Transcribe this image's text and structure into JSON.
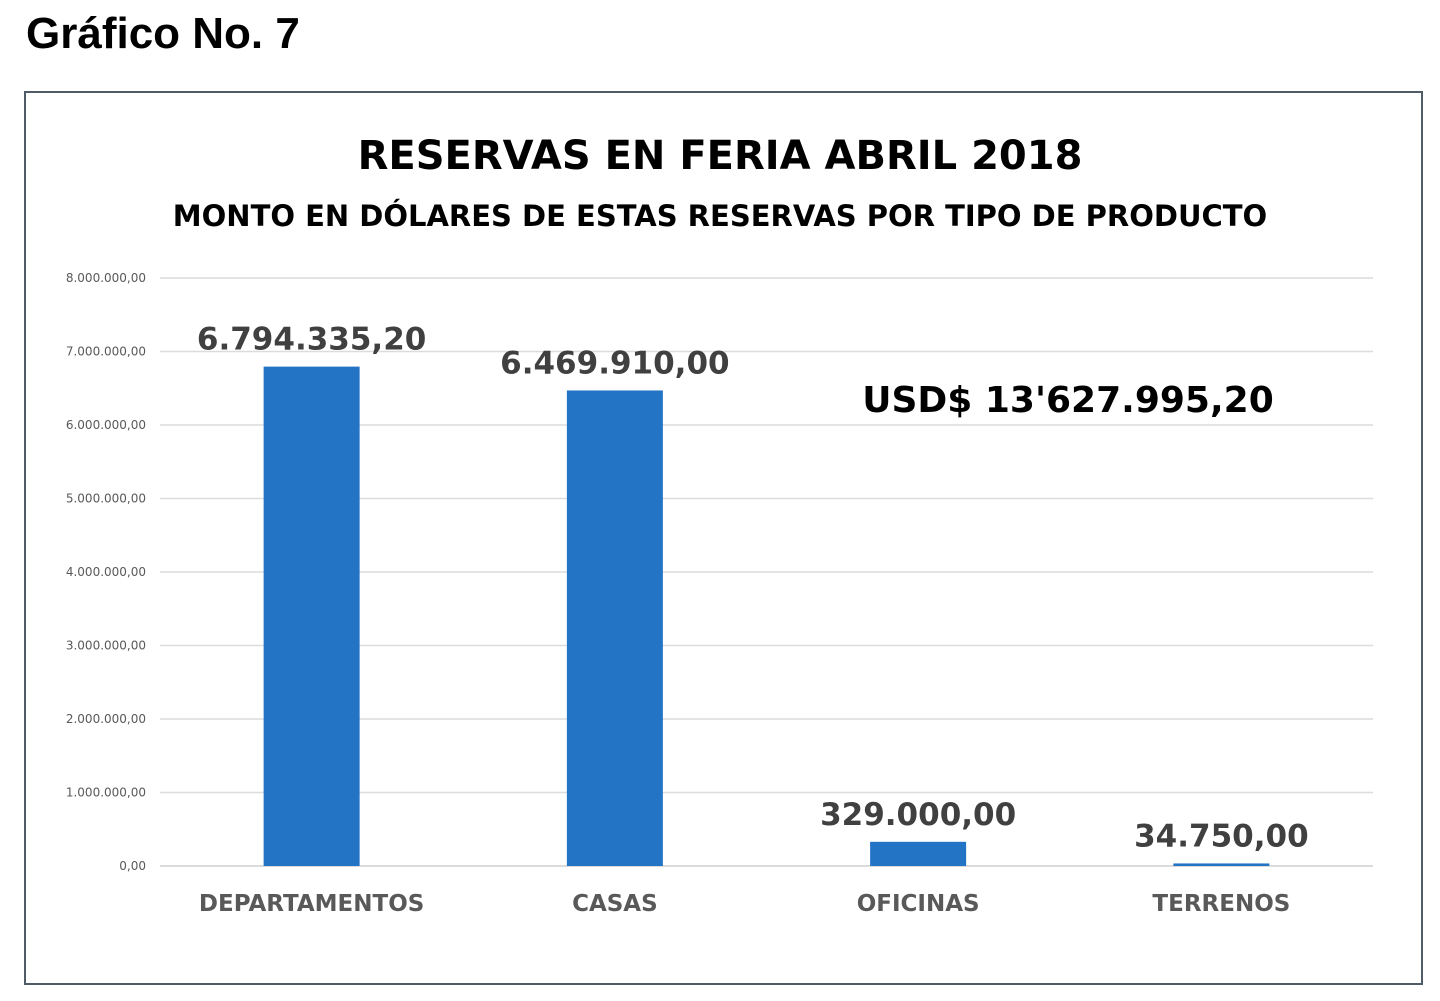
{
  "page": {
    "caption": "Gráfico No. 7"
  },
  "chart_data": {
    "type": "bar",
    "title": "RESERVAS EN FERIA ABRIL 2018",
    "subtitle": "MONTO EN DÓLARES DE ESTAS RESERVAS POR TIPO DE PRODUCTO",
    "categories": [
      "DEPARTAMENTOS",
      "CASAS",
      "OFICINAS",
      "TERRENOS"
    ],
    "values": [
      6794335.2,
      6469910.0,
      329000.0,
      34750.0
    ],
    "data_labels": [
      "6.794.335,20",
      "6.469.910,00",
      "329.000,00",
      "34.750,00"
    ],
    "y_ticks": [
      0,
      1000000,
      2000000,
      3000000,
      4000000,
      5000000,
      6000000,
      7000000,
      8000000
    ],
    "y_tick_labels": [
      "0,00",
      "1.000.000,00",
      "2.000.000,00",
      "3.000.000,00",
      "4.000.000,00",
      "5.000.000,00",
      "6.000.000,00",
      "7.000.000,00",
      "8.000.000,00"
    ],
    "ylim": [
      0,
      8000000
    ],
    "xlabel": "",
    "ylabel": "",
    "grid": true,
    "legend": "none",
    "bar_color": "#2474c6",
    "annotation": "USD$ 13'627.995,20"
  }
}
